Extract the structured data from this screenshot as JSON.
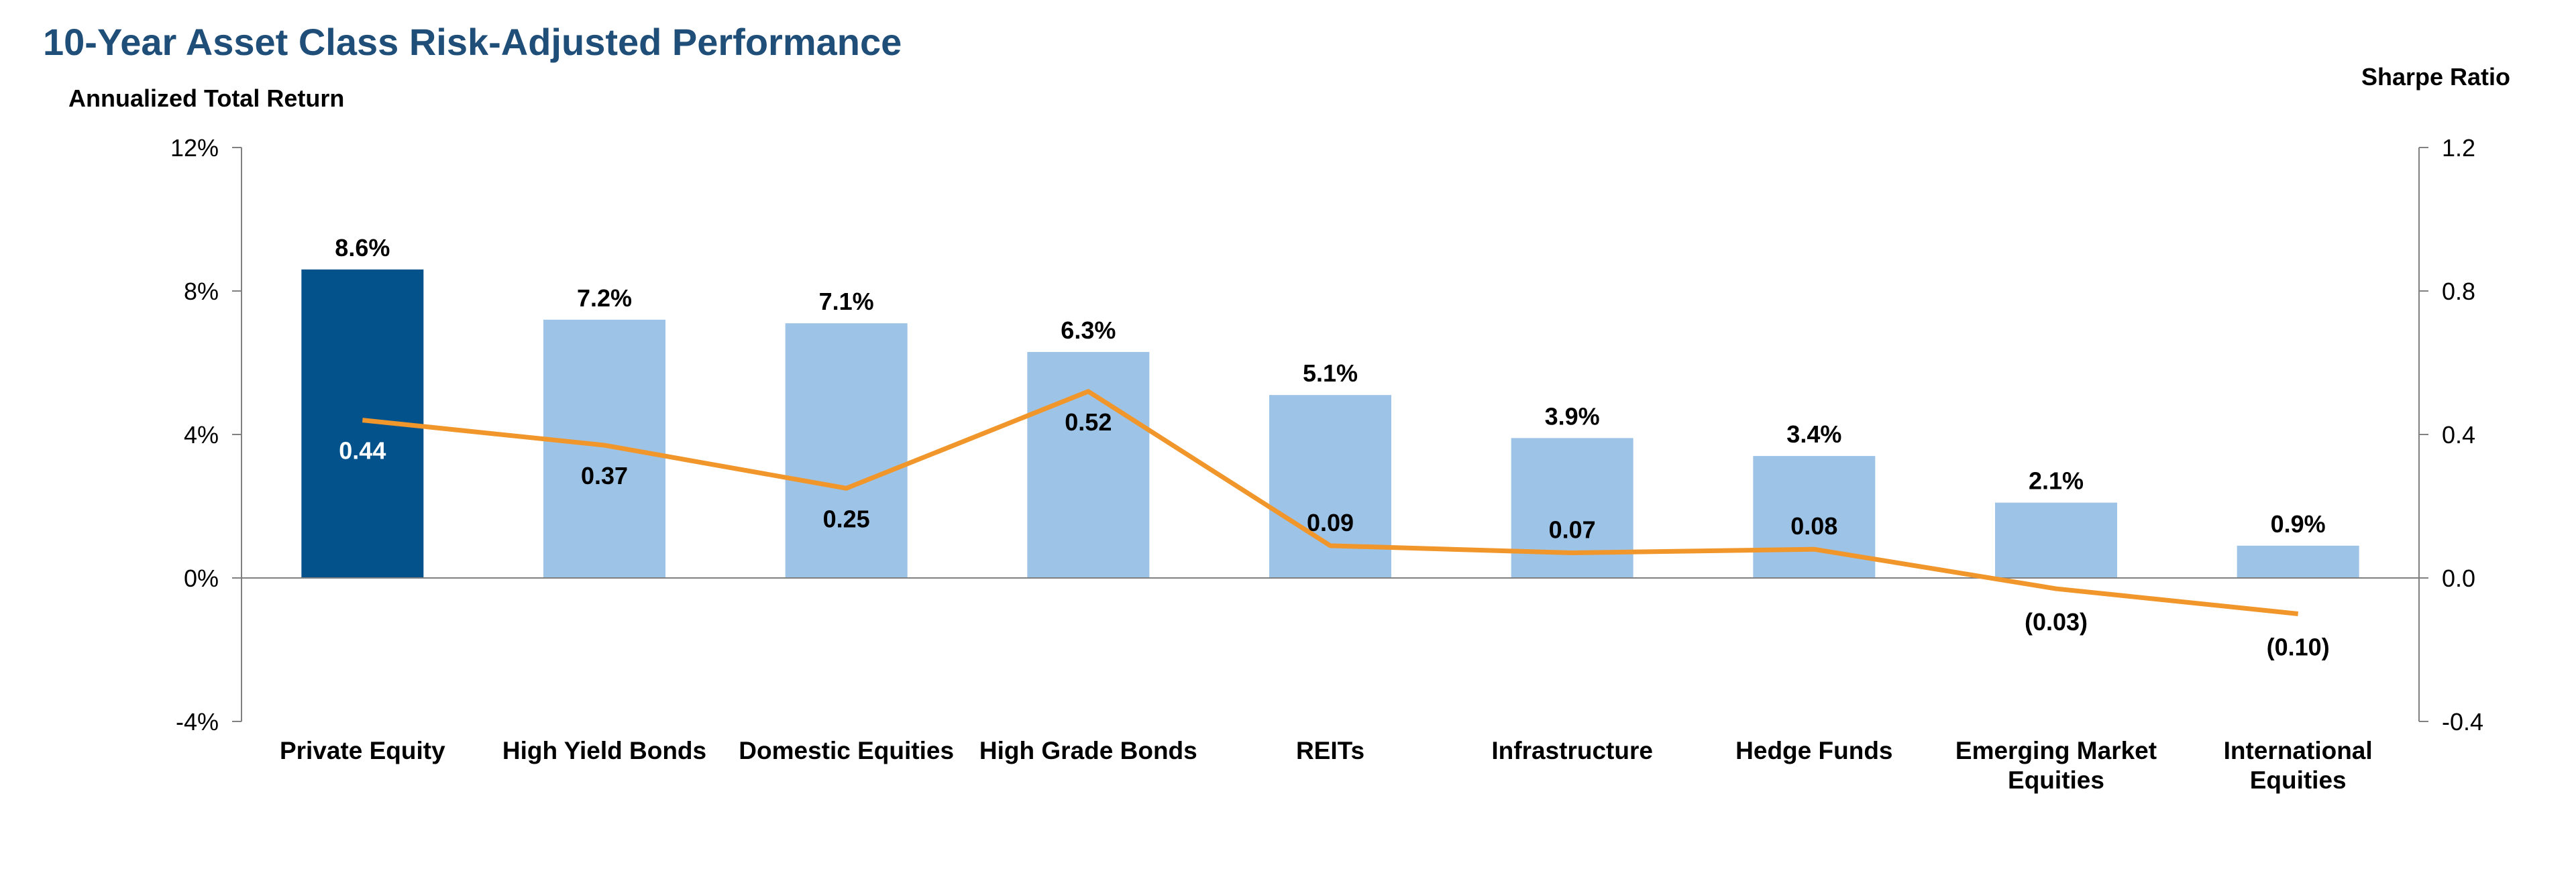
{
  "chart_data": {
    "type": "bar",
    "title": "10-Year Asset Class Risk-Adjusted Performance",
    "ylabel": "Annualized Total Return",
    "y2label": "Sharpe Ratio",
    "ylim": [
      -4,
      12
    ],
    "y2lim": [
      -0.4,
      1.2
    ],
    "yticks": [
      "12%",
      "8%",
      "4%",
      "0%",
      "-4%"
    ],
    "y2ticks": [
      "1.2",
      "0.8",
      "0.4",
      "0.0",
      "-0.4"
    ],
    "categories": [
      "Private Equity",
      "High Yield Bonds",
      "Domestic Equities",
      "High Grade Bonds",
      "REITs",
      "Infrastructure",
      "Hedge Funds",
      "Emerging Market Equities",
      "International Equities"
    ],
    "series": [
      {
        "name": "Annualized Total Return",
        "values": [
          8.6,
          7.2,
          7.1,
          6.3,
          5.1,
          3.9,
          3.4,
          2.1,
          0.9
        ],
        "labels": [
          "8.6%",
          "7.2%",
          "7.1%",
          "6.3%",
          "5.1%",
          "3.9%",
          "3.4%",
          "2.1%",
          "0.9%"
        ]
      },
      {
        "name": "Sharpe Ratio",
        "values": [
          0.44,
          0.37,
          0.25,
          0.52,
          0.09,
          0.07,
          0.08,
          -0.03,
          -0.1
        ],
        "labels": [
          "0.44",
          "0.37",
          "0.25",
          "0.52",
          "0.09",
          "0.07",
          "0.08",
          "(0.03)",
          "(0.10)"
        ]
      }
    ],
    "colors": {
      "highlight_bar": "#04528c",
      "bar": "#9dc3e6",
      "line": "#f0962b",
      "axis": "#808080",
      "title": "#1f4e79"
    },
    "grid": false,
    "legend": "none"
  }
}
